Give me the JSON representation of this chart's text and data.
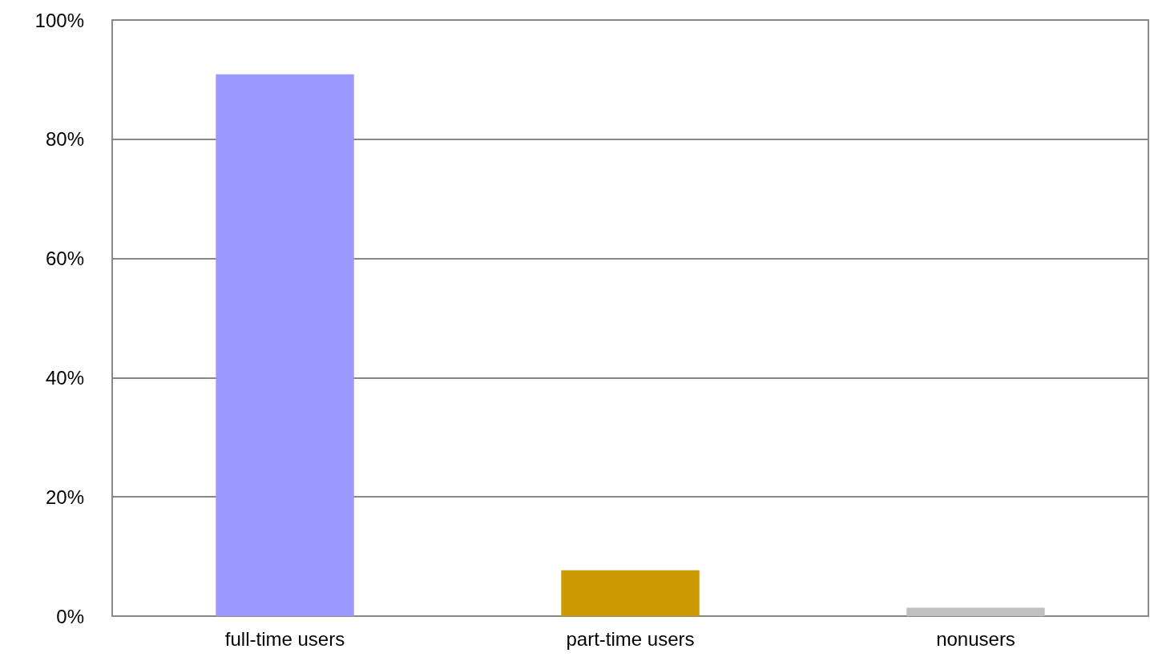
{
  "chart_data": {
    "type": "bar",
    "categories": [
      "full-time users",
      "part-time users",
      "nonusers"
    ],
    "values": [
      90.9,
      7.7,
      1.4
    ],
    "colors": [
      "#9999ff",
      "#cc9900",
      "#c0c0c0"
    ],
    "ylim": [
      0,
      100
    ],
    "yticks": [
      {
        "value": 0,
        "label": "0%"
      },
      {
        "value": 20,
        "label": "20%"
      },
      {
        "value": 40,
        "label": "40%"
      },
      {
        "value": 60,
        "label": "60%"
      },
      {
        "value": 80,
        "label": "80%"
      },
      {
        "value": 100,
        "label": "100%"
      }
    ],
    "grid": "y"
  }
}
